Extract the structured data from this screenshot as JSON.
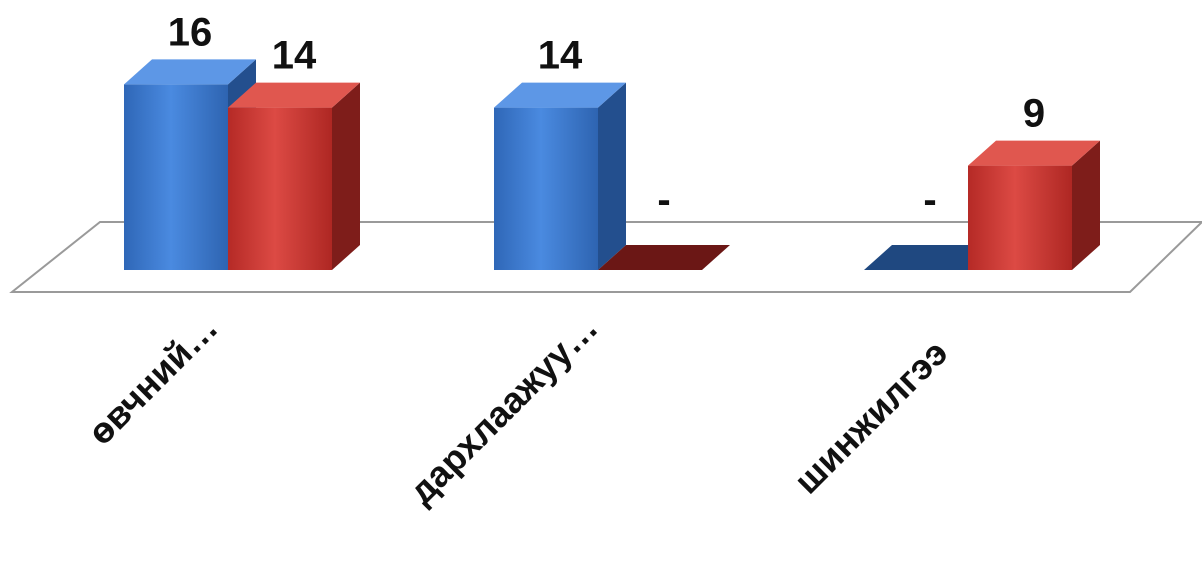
{
  "chart_data": {
    "type": "bar",
    "categories": [
      "өвчний…",
      "дархлаажуу…",
      "шинжилгээ"
    ],
    "series": [
      {
        "values": [
          16,
          14,
          0
        ],
        "display_labels": [
          "16",
          "14",
          "-"
        ],
        "color": "#3a7ad0"
      },
      {
        "values": [
          14,
          0,
          9
        ],
        "display_labels": [
          "14",
          "-",
          "9"
        ],
        "color": "#cc3a35"
      }
    ],
    "ylim": [
      0,
      16
    ],
    "grid": false,
    "legend": "none",
    "style": "3d-clustered-column"
  }
}
